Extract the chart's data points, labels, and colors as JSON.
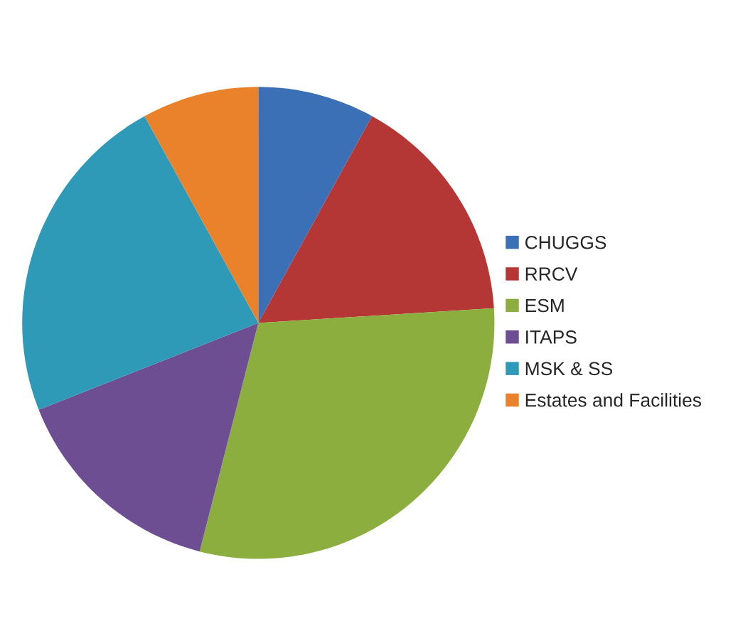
{
  "chart_data": {
    "type": "pie",
    "categories": [
      "CHUGGS",
      "RRCV",
      "ESM",
      "ITAPS",
      "MSK & SS",
      "Estates and Facilities"
    ],
    "values": [
      8,
      16,
      30,
      15,
      23,
      8
    ],
    "colors": [
      "#3b6fb6",
      "#b43735",
      "#8bae3f",
      "#6d4e92",
      "#2f9ab8",
      "#e9822a"
    ],
    "legend": "right"
  }
}
